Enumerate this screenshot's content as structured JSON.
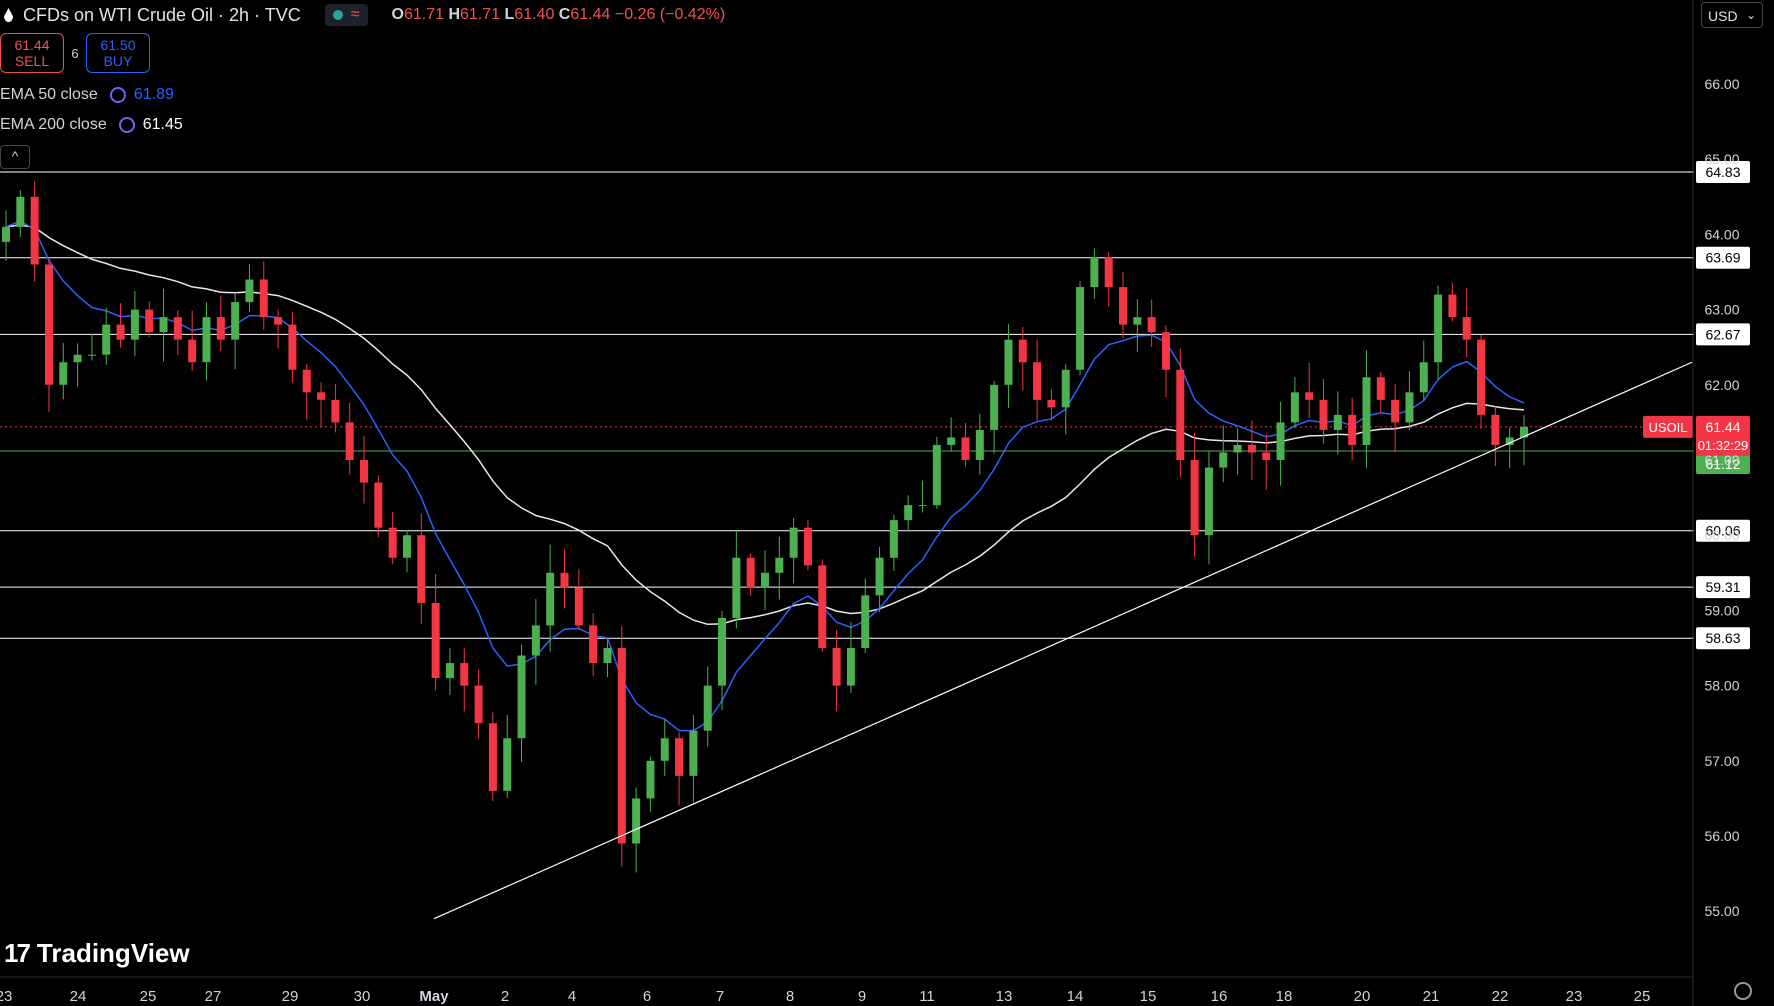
{
  "header": {
    "title": "CFDs on WTI Crude Oil · 2h · TVC",
    "ohlc": {
      "o_label": "O",
      "o": "61.71",
      "h_label": "H",
      "h": "61.71",
      "l_label": "L",
      "l": "61.40",
      "c_label": "C",
      "c": "61.44",
      "change": "−0.26 (−0.42%)"
    },
    "status_icon": "market-status-icon",
    "status_wave": "≈"
  },
  "trade": {
    "sell_price": "61.44",
    "sell_label": "SELL",
    "spread": "6",
    "buy_price": "61.50",
    "buy_label": "BUY"
  },
  "indicators": [
    {
      "label": "EMA 50 close",
      "value": "61.89",
      "color": "#2962ff"
    },
    {
      "label": "EMA 200 close",
      "value": "61.45",
      "color": "#ffffff"
    }
  ],
  "collapse_icon": "chevron-up-icon",
  "currency": {
    "label": "USD",
    "icon": "chevron-down-icon"
  },
  "branding": {
    "mark": "17",
    "name": "TradingView"
  },
  "price_tag": {
    "symbol": "USOIL",
    "price": "61.44",
    "countdown": "01:32:29"
  },
  "colors": {
    "up": "#4caf50",
    "down": "#f23645",
    "ema50": "#2962ff",
    "ema200": "#e8e8e8",
    "level": "#ffffff",
    "support": "#4caf50"
  },
  "chart_data": {
    "type": "candlestick",
    "title": "CFDs on WTI Crude Oil",
    "ylim": [
      54.0,
      67.0
    ],
    "y_ticks": [
      "66.00",
      "65.00",
      "64.00",
      "63.00",
      "62.00",
      "61.00",
      "60.00",
      "59.00",
      "58.00",
      "57.00",
      "56.00",
      "55.00"
    ],
    "x_ticks": [
      "23",
      "24",
      "25",
      "27",
      "29",
      "30",
      "May",
      "2",
      "4",
      "6",
      "7",
      "8",
      "9",
      "11",
      "13",
      "14",
      "15",
      "16",
      "18",
      "20",
      "21",
      "22",
      "23",
      "25"
    ],
    "levels": [
      "64.83",
      "63.69",
      "62.67",
      "60.06",
      "59.31",
      "58.63"
    ],
    "support_level": "61.12",
    "last_price": 61.44,
    "trendline": {
      "start": {
        "date": "May 1",
        "price": 54.9
      },
      "end": {
        "date": "May 25",
        "price": 62.3
      }
    },
    "candles_close": [
      64.1,
      64.5,
      63.6,
      62.0,
      62.3,
      62.4,
      62.4,
      62.8,
      62.6,
      63.0,
      62.7,
      62.9,
      62.6,
      62.3,
      62.9,
      62.6,
      63.1,
      63.4,
      62.9,
      62.8,
      62.2,
      61.9,
      61.8,
      61.5,
      61.0,
      60.7,
      60.1,
      59.7,
      60.0,
      59.1,
      58.1,
      58.3,
      58.0,
      57.5,
      56.6,
      57.3,
      58.4,
      58.8,
      59.5,
      59.3,
      58.8,
      58.3,
      58.5,
      55.9,
      56.5,
      57.0,
      57.3,
      56.8,
      57.4,
      58.0,
      58.9,
      59.7,
      59.3,
      59.5,
      59.7,
      60.1,
      59.6,
      58.5,
      58.0,
      58.5,
      59.2,
      59.7,
      60.2,
      60.4,
      60.4,
      61.2,
      61.3,
      61.0,
      61.4,
      62.0,
      62.6,
      62.3,
      61.8,
      61.7,
      62.2,
      63.3,
      63.7,
      63.3,
      62.8,
      62.9,
      62.7,
      62.2,
      61.0,
      60.0,
      60.9,
      61.1,
      61.2,
      61.1,
      61.0,
      61.5,
      61.9,
      61.8,
      61.4,
      61.6,
      61.2,
      62.1,
      61.8,
      61.5,
      61.9,
      62.3,
      63.2,
      62.9,
      62.6,
      61.6,
      61.2,
      61.3,
      61.44
    ]
  }
}
